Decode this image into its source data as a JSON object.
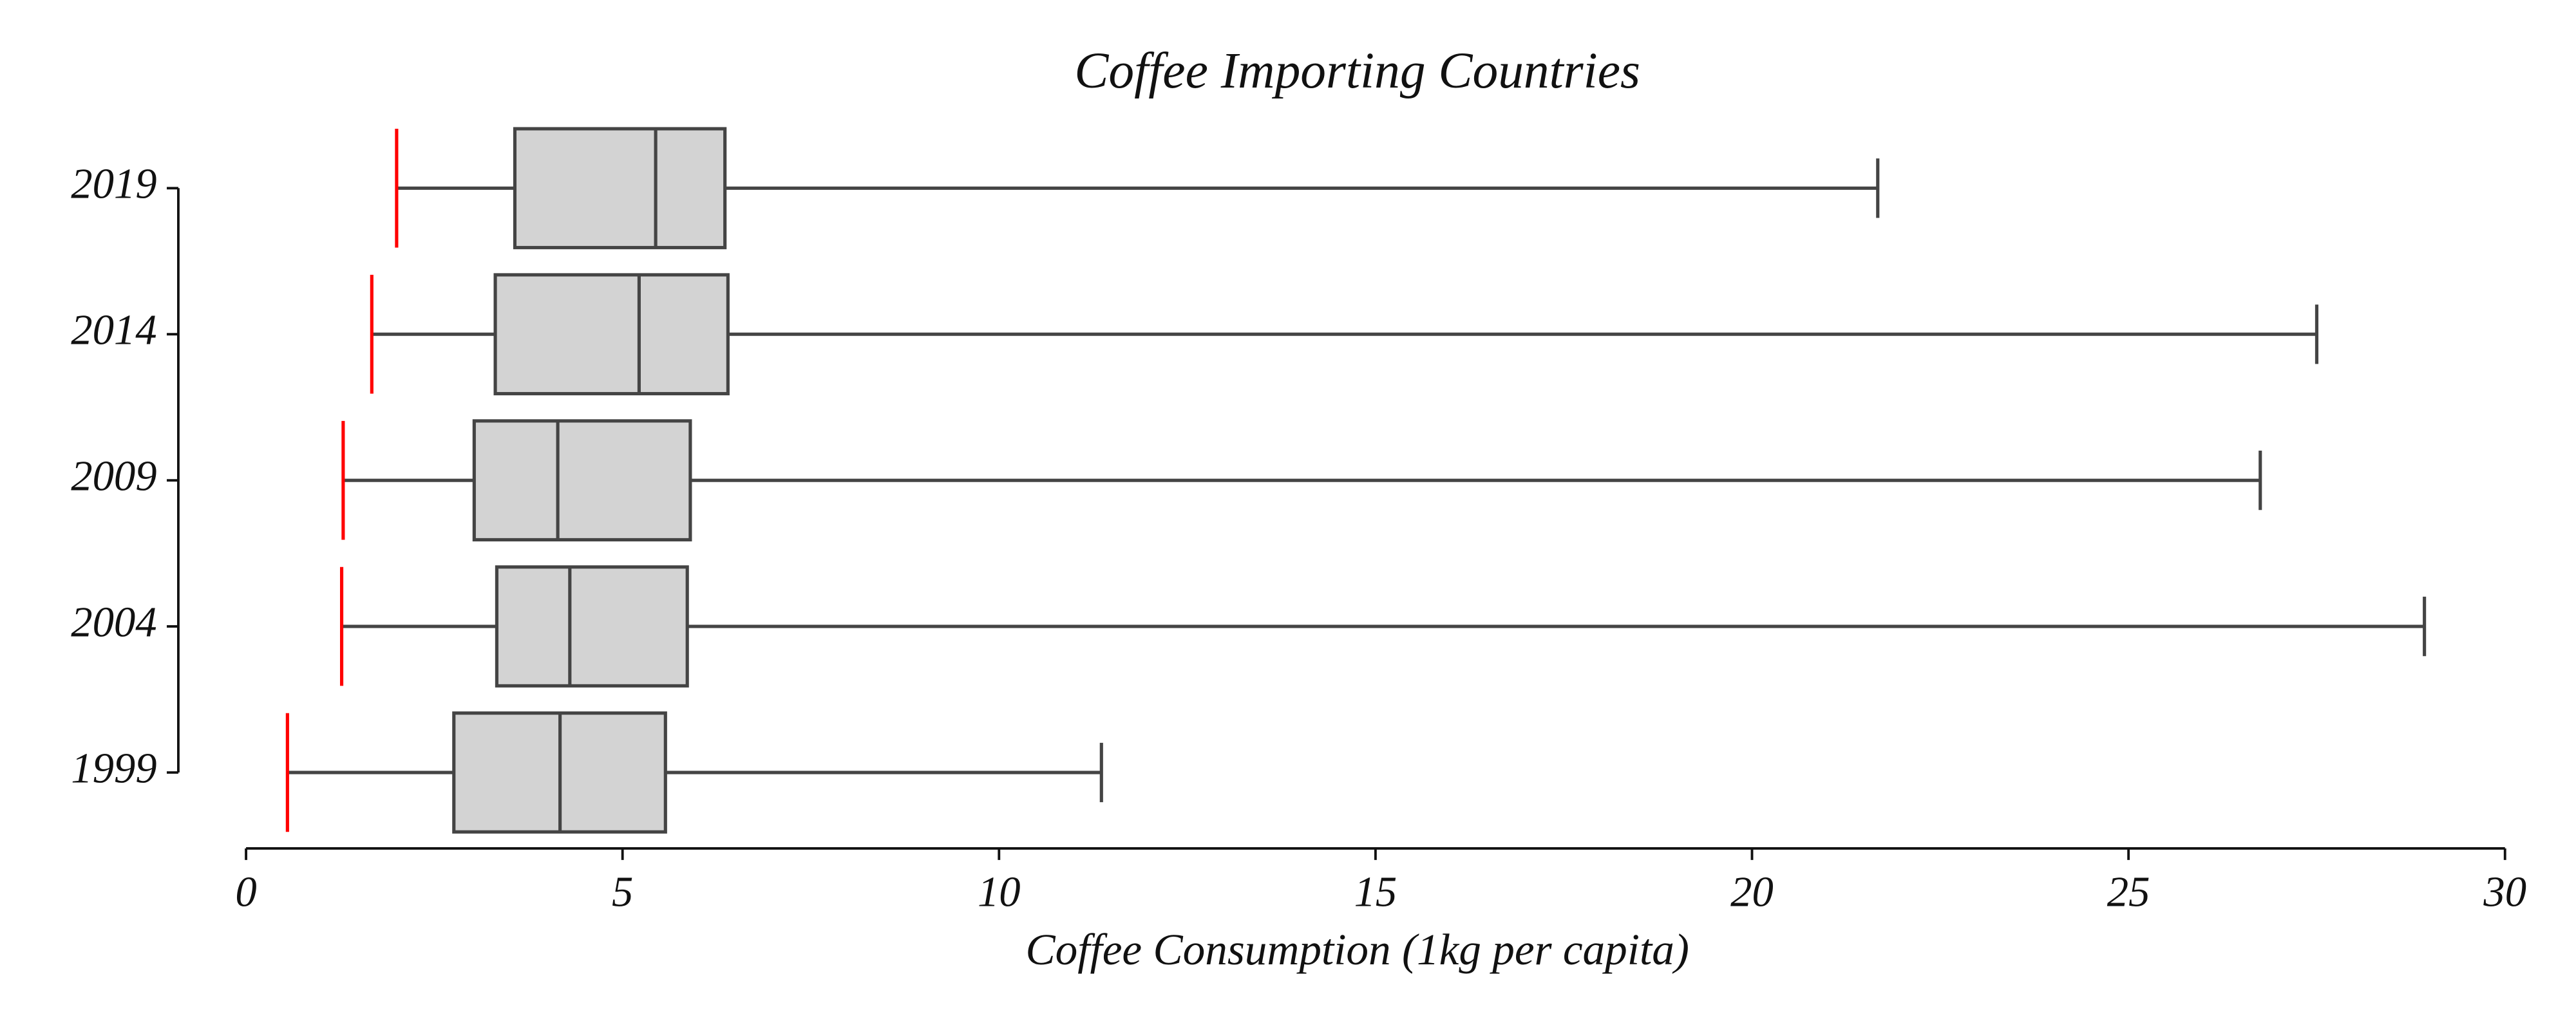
{
  "chart_data": {
    "type": "boxplot",
    "orientation": "horizontal",
    "title": "Coffee Importing Countries",
    "x_label": "Coffee Consumption (1kg per capita)",
    "categories": [
      "1999",
      "2004",
      "2009",
      "2014",
      "2019"
    ],
    "boxes": [
      {
        "min": 0.55,
        "q1": 2.76,
        "median": 4.17,
        "q3": 5.57,
        "max": 11.36
      },
      {
        "min": 1.27,
        "q1": 3.33,
        "median": 4.3,
        "q3": 5.86,
        "max": 28.93
      },
      {
        "min": 1.29,
        "q1": 3.03,
        "median": 4.14,
        "q3": 5.9,
        "max": 26.75
      },
      {
        "min": 1.67,
        "q1": 3.31,
        "median": 5.22,
        "q3": 6.4,
        "max": 27.5
      },
      {
        "min": 2.0,
        "q1": 3.57,
        "median": 5.44,
        "q3": 6.36,
        "max": 21.67
      }
    ],
    "xlim": [
      0,
      30
    ],
    "xticks": [
      0,
      5,
      10,
      15,
      20,
      25,
      30
    ],
    "box_color": "#d3d3d3",
    "edge_color": "#444444",
    "min_cap_color": "red"
  }
}
